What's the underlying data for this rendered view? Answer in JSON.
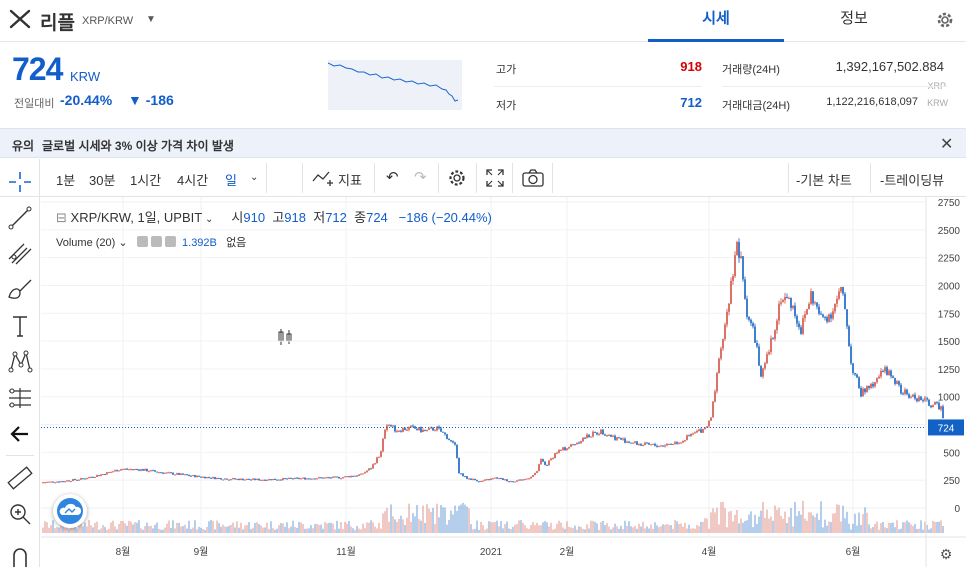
{
  "header": {
    "coin_name": "리플",
    "pair": "XRP/KRW",
    "tabs": [
      {
        "label": "시세"
      },
      {
        "label": "정보"
      }
    ]
  },
  "ticker": {
    "price": "724",
    "unit": "KRW",
    "change_label": "전일대비",
    "change_rate": "-20.44%",
    "change_amount": "▼ -186",
    "high_label": "고가",
    "high_value": "918",
    "low_label": "저가",
    "low_value": "712",
    "volume_label": "거래량(24H)",
    "volume_value": "1,392,167,502.884",
    "volume_unit": "XRP",
    "amount_label": "거래대금(24H)",
    "amount_value": "1,122,216,618,097",
    "amount_unit": "KRW"
  },
  "notice": {
    "tag": "유의",
    "text": "글로벌 시세와 3% 이상 가격 차이 발생"
  },
  "toolbar": {
    "intervals": [
      "1분",
      "30분",
      "1시간",
      "4시간",
      "일"
    ],
    "indicators_label": "지표",
    "basic_chart_label": "기본 차트",
    "tradingview_label": "트레이딩뷰"
  },
  "legend": {
    "symbol": "XRP/KRW, 1일, UPBIT",
    "open_label": "시",
    "open_value": "910",
    "high_label": "고",
    "high_value": "918",
    "low_label": "저",
    "low_value": "712",
    "close_label": "종",
    "close_value": "724",
    "change": "−186 (−20.44%)",
    "volume_name": "Volume (20)",
    "volume_value": "1.392B",
    "volume_extra": "없음"
  },
  "colors": {
    "accent_blue": "#115dcb",
    "up_red": "#d24f45",
    "down_blue": "#1261c4"
  },
  "chart_data": {
    "type": "candlestick",
    "x_ticks": [
      "8월",
      "9월",
      "11월",
      "2021",
      "2월",
      "4월",
      "6월"
    ],
    "y_ticks": [
      0,
      250,
      500,
      750,
      1000,
      1250,
      1500,
      1750,
      2000,
      2250,
      2500,
      2750
    ],
    "ylim": [
      0,
      2750
    ],
    "last_price_label": "724",
    "series": [
      {
        "name": "price",
        "points": [
          [
            0,
            230
          ],
          [
            20,
            240
          ],
          [
            40,
            260
          ],
          [
            60,
            300
          ],
          [
            80,
            350
          ],
          [
            100,
            345
          ],
          [
            120,
            320
          ],
          [
            140,
            300
          ],
          [
            160,
            280
          ],
          [
            180,
            265
          ],
          [
            200,
            258
          ],
          [
            220,
            255
          ],
          [
            240,
            260
          ],
          [
            260,
            265
          ],
          [
            280,
            270
          ],
          [
            300,
            275
          ],
          [
            320,
            300
          ],
          [
            330,
            360
          ],
          [
            340,
            500
          ],
          [
            345,
            770
          ],
          [
            355,
            700
          ],
          [
            370,
            720
          ],
          [
            385,
            690
          ],
          [
            395,
            720
          ],
          [
            405,
            650
          ],
          [
            415,
            540
          ],
          [
            418,
            320
          ],
          [
            425,
            270
          ],
          [
            440,
            240
          ],
          [
            455,
            270
          ],
          [
            470,
            240
          ],
          [
            485,
            260
          ],
          [
            495,
            310
          ],
          [
            500,
            430
          ],
          [
            505,
            380
          ],
          [
            515,
            500
          ],
          [
            530,
            560
          ],
          [
            545,
            640
          ],
          [
            560,
            690
          ],
          [
            575,
            630
          ],
          [
            590,
            590
          ],
          [
            600,
            570
          ],
          [
            620,
            560
          ],
          [
            640,
            600
          ],
          [
            655,
            680
          ],
          [
            665,
            720
          ],
          [
            670,
            800
          ],
          [
            678,
            1300
          ],
          [
            685,
            1700
          ],
          [
            690,
            2000
          ],
          [
            695,
            2380
          ],
          [
            700,
            2200
          ],
          [
            705,
            1800
          ],
          [
            715,
            1500
          ],
          [
            720,
            1150
          ],
          [
            730,
            1480
          ],
          [
            740,
            1900
          ],
          [
            750,
            1850
          ],
          [
            760,
            1600
          ],
          [
            770,
            1920
          ],
          [
            780,
            1700
          ],
          [
            790,
            1750
          ],
          [
            800,
            1950
          ],
          [
            805,
            1750
          ],
          [
            810,
            1300
          ],
          [
            820,
            1030
          ],
          [
            830,
            1100
          ],
          [
            840,
            1250
          ],
          [
            850,
            1200
          ],
          [
            860,
            1050
          ],
          [
            870,
            1000
          ],
          [
            880,
            980
          ],
          [
            890,
            930
          ],
          [
            900,
            910
          ],
          [
            905,
            724
          ]
        ]
      }
    ]
  }
}
